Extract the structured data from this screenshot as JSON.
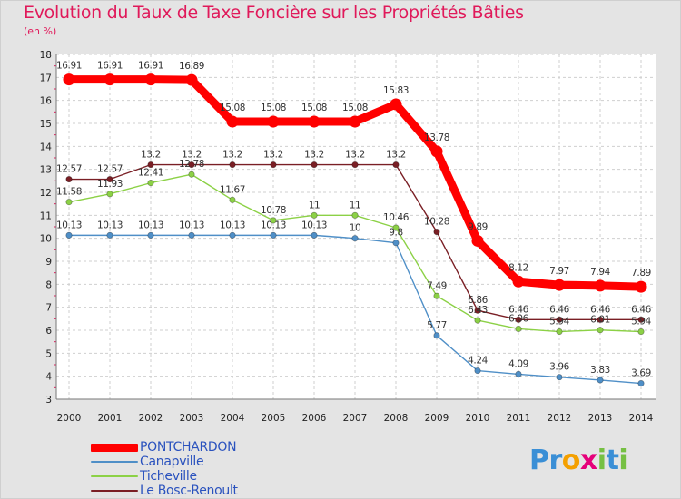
{
  "chart_data": {
    "type": "line",
    "title": "Evolution du Taux de Taxe Foncière sur les Propriétés Bâties",
    "ylabel": "(en %)",
    "ylim": [
      3,
      18
    ],
    "yticks": [
      "3",
      "4",
      "5",
      "6",
      "7",
      "8",
      "9",
      "10",
      "11",
      "12",
      "13",
      "14",
      "15",
      "16",
      "17",
      "18"
    ],
    "categories": [
      "2000",
      "2001",
      "2002",
      "2003",
      "2004",
      "2005",
      "2006",
      "2007",
      "2008",
      "2009",
      "2010",
      "2011",
      "2012",
      "2013",
      "2014"
    ],
    "series": [
      {
        "name": "PONTCHARDON",
        "color": "#ff0000",
        "values": [
          16.91,
          16.91,
          16.91,
          16.89,
          15.08,
          15.08,
          15.08,
          15.08,
          15.83,
          13.78,
          9.89,
          8.12,
          7.97,
          7.94,
          7.89
        ],
        "labels": [
          "16.91",
          "16.91",
          "16.91",
          "16.89",
          "15.08",
          "15.08",
          "15.08",
          "15.08",
          "15.83",
          "13.78",
          "9.89",
          "8.12",
          "7.97",
          "7.94",
          "7.89"
        ]
      },
      {
        "name": "Canapville",
        "color": "#4f8fc7",
        "values": [
          10.13,
          10.13,
          10.13,
          10.13,
          10.13,
          10.13,
          10.13,
          10,
          9.8,
          5.77,
          4.24,
          4.09,
          3.96,
          3.83,
          3.69
        ],
        "labels": [
          "10.13",
          "10.13",
          "10.13",
          "10.13",
          "10.13",
          "10.13",
          "10.13",
          "10",
          "9.8",
          "5.77",
          "4.24",
          "4.09",
          "3.96",
          "3.83",
          "3.69"
        ]
      },
      {
        "name": "Ticheville",
        "color": "#8cd146",
        "values": [
          11.58,
          11.93,
          12.41,
          12.78,
          11.67,
          10.78,
          11,
          11,
          10.46,
          7.49,
          6.43,
          6.06,
          5.94,
          6.01,
          5.94
        ],
        "labels": [
          "11.58",
          "11.93",
          "12.41",
          "12.78",
          "11.67",
          "10.78",
          "11",
          "11",
          "10.46",
          "7.49",
          "6.43",
          "6.06",
          "5.94",
          "6.01",
          "5.94"
        ]
      },
      {
        "name": "Le Bosc-Renoult",
        "color": "#7a1f25",
        "values": [
          12.57,
          12.57,
          13.2,
          13.2,
          13.2,
          13.2,
          13.2,
          13.2,
          13.2,
          10.28,
          6.86,
          6.46,
          6.46,
          6.46,
          6.46
        ],
        "labels": [
          "12.57",
          "12.57",
          "13.2",
          "13.2",
          "13.2",
          "13.2",
          "13.2",
          "13.2",
          "13.2",
          "10.28",
          "6.86",
          "6.46",
          "6.46",
          "6.46",
          "6.46"
        ]
      }
    ]
  },
  "logo": {
    "letters": [
      "P",
      "r",
      "o",
      "x",
      "i",
      "t",
      "i"
    ],
    "colors": [
      "#3a8fd6",
      "#3a8fd6",
      "#f4a000",
      "#e5007a",
      "#76c043",
      "#3a8fd6",
      "#76c043"
    ]
  }
}
